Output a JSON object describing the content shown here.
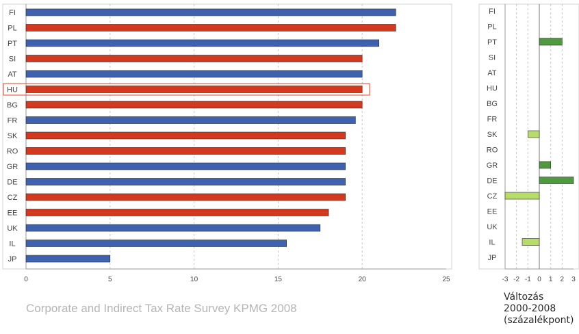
{
  "source": "Corporate and Indirect Tax Rate Survey KPMG 2008",
  "change_axis_label": [
    "Változás",
    "2000-2008",
    "(százalékpont)"
  ],
  "colors": {
    "blue": "#3f62b0",
    "red": "#d3391f",
    "highlight": "#e8604a",
    "increase": "#4f9a3e",
    "decrease": "#b6dc6a"
  },
  "chart_data": [
    {
      "type": "bar",
      "orientation": "horizontal",
      "categories": [
        "FI",
        "PL",
        "PT",
        "SI",
        "AT",
        "HU",
        "BG",
        "FR",
        "SK",
        "RO",
        "GR",
        "DE",
        "CZ",
        "EE",
        "UK",
        "IL",
        "JP"
      ],
      "values": [
        22,
        22,
        21,
        20,
        20,
        20,
        20,
        19.6,
        19,
        19,
        19,
        19,
        19,
        18,
        17.5,
        15.5,
        5
      ],
      "bar_colors": [
        "blue",
        "red",
        "blue",
        "red",
        "blue",
        "red",
        "red",
        "blue",
        "red",
        "red",
        "blue",
        "blue",
        "red",
        "red",
        "blue",
        "blue",
        "blue"
      ],
      "highlighted_category": "HU",
      "xlim": [
        0,
        25
      ],
      "xticks": [
        0,
        5,
        10,
        15,
        20,
        25
      ],
      "grid": true
    },
    {
      "type": "bar",
      "orientation": "horizontal",
      "categories": [
        "FI",
        "PL",
        "PT",
        "SI",
        "AT",
        "HU",
        "BG",
        "FR",
        "SK",
        "RO",
        "GR",
        "DE",
        "CZ",
        "EE",
        "UK",
        "IL",
        "JP"
      ],
      "values": [
        0,
        0,
        2,
        0,
        0,
        0,
        0,
        0,
        -1,
        0,
        1,
        3,
        -3,
        0,
        0,
        -1.5,
        0
      ],
      "xlim": [
        -3,
        3
      ],
      "xticks": [
        "-3",
        "-2",
        "-1",
        "0",
        "1",
        "2",
        "3"
      ],
      "grid": true
    }
  ]
}
